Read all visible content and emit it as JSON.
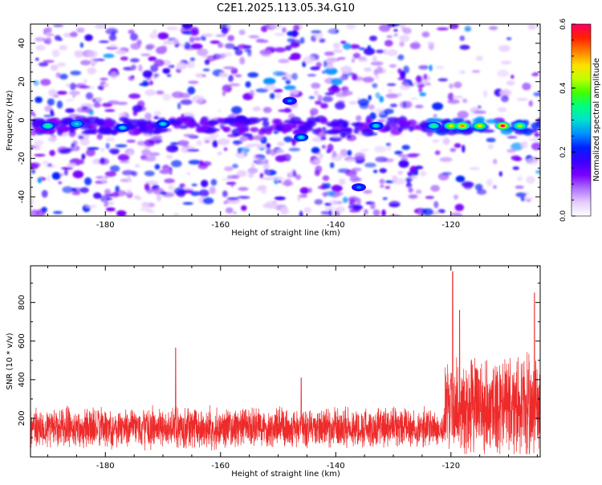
{
  "title": "C2E1.2025.113.05.34.G10",
  "chart_data": [
    {
      "type": "heatmap",
      "xlabel": "Height of straight line (km)",
      "ylabel": "Frequency (Hz)",
      "xlim": [
        -193,
        -104.5
      ],
      "ylim": [
        -50,
        50
      ],
      "x_ticks": [
        -180,
        -160,
        -140,
        -120
      ],
      "y_ticks": [
        -40,
        -20,
        0,
        20,
        40
      ],
      "colorbar": {
        "label": "Normalized spectral amplitude",
        "range": [
          0.0,
          0.6
        ],
        "ticks": [
          0.0,
          0.2,
          0.4,
          0.6
        ],
        "colors": [
          "#ffffff",
          "#e6ccff",
          "#b070ff",
          "#7a00ff",
          "#3a00ff",
          "#0020ff",
          "#0090ff",
          "#00e0d0",
          "#00ff80",
          "#40ff00",
          "#c0ff00",
          "#ffe000",
          "#ff8000",
          "#ff2000",
          "#ff0060"
        ]
      },
      "features": [
        {
          "x_start": -193,
          "x_end": -104.5,
          "frequency": -3,
          "description": "persistent signal band near 0 Hz, strongest between -122 and -106 km"
        }
      ],
      "peaks": [
        {
          "x": -190,
          "y": -3,
          "value": 0.25
        },
        {
          "x": -185,
          "y": -2,
          "value": 0.22
        },
        {
          "x": -177,
          "y": -4,
          "value": 0.2
        },
        {
          "x": -170,
          "y": -2,
          "value": 0.18
        },
        {
          "x": -148,
          "y": 10,
          "value": 0.15
        },
        {
          "x": -146,
          "y": -9,
          "value": 0.2
        },
        {
          "x": -136,
          "y": -35,
          "value": 0.12
        },
        {
          "x": -133,
          "y": -3,
          "value": 0.2
        },
        {
          "x": -123,
          "y": -3,
          "value": 0.25
        },
        {
          "x": -120,
          "y": -3,
          "value": 0.42
        },
        {
          "x": -118,
          "y": -3,
          "value": 0.5
        },
        {
          "x": -115,
          "y": -3,
          "value": 0.45
        },
        {
          "x": -111,
          "y": -3,
          "value": 0.6
        },
        {
          "x": -108,
          "y": -3,
          "value": 0.35
        }
      ]
    },
    {
      "type": "line",
      "xlabel": "Height of straight line (km)",
      "ylabel": "SNR (10 * v/v)",
      "xlim": [
        -193,
        -104.5
      ],
      "ylim": [
        0,
        990
      ],
      "x_ticks": [
        -180,
        -160,
        -140,
        -120
      ],
      "y_ticks": [
        200,
        400,
        600,
        800
      ],
      "series": [
        {
          "color": "#ee2a2a",
          "x_range": [
            -193,
            -104.5
          ],
          "baseline": 150,
          "noise_spread": 120,
          "notable_peaks": [
            {
              "x": -167.8,
              "y": 565
            },
            {
              "x": -146,
              "y": 410
            },
            {
              "x": -119.7,
              "y": 960
            },
            {
              "x": -118.5,
              "y": 760
            },
            {
              "x": -105.5,
              "y": 850
            }
          ]
        }
      ]
    }
  ]
}
